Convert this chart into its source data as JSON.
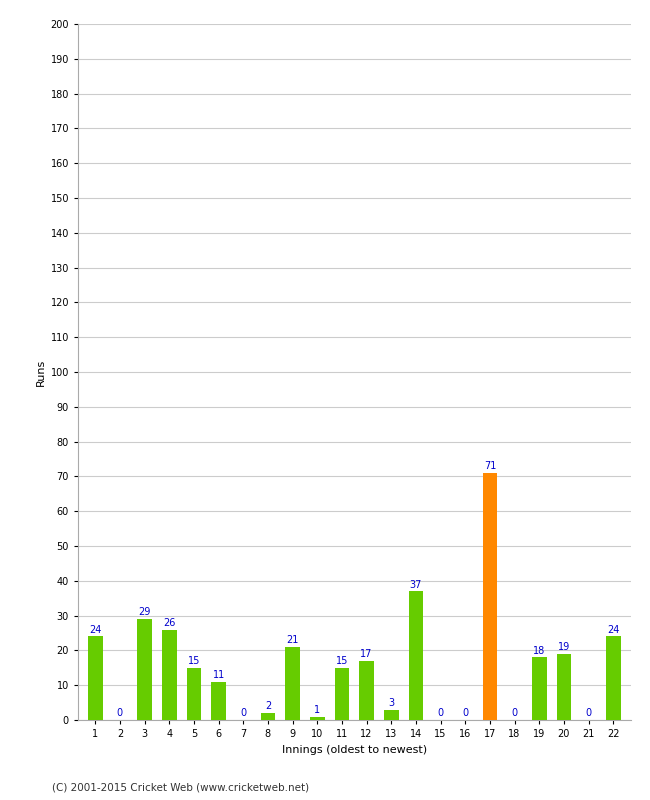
{
  "innings": [
    1,
    2,
    3,
    4,
    5,
    6,
    7,
    8,
    9,
    10,
    11,
    12,
    13,
    14,
    15,
    16,
    17,
    18,
    19,
    20,
    21,
    22
  ],
  "runs": [
    24,
    0,
    29,
    26,
    15,
    11,
    0,
    2,
    21,
    1,
    15,
    17,
    3,
    37,
    0,
    0,
    71,
    0,
    18,
    19,
    0,
    24
  ],
  "bar_colors": [
    "#66cc00",
    "#66cc00",
    "#66cc00",
    "#66cc00",
    "#66cc00",
    "#66cc00",
    "#66cc00",
    "#66cc00",
    "#66cc00",
    "#66cc00",
    "#66cc00",
    "#66cc00",
    "#66cc00",
    "#66cc00",
    "#66cc00",
    "#66cc00",
    "#ff8800",
    "#66cc00",
    "#66cc00",
    "#66cc00",
    "#66cc00",
    "#66cc00"
  ],
  "xlabel": "Innings (oldest to newest)",
  "ylabel": "Runs",
  "ylim": [
    0,
    200
  ],
  "yticks": [
    0,
    10,
    20,
    30,
    40,
    50,
    60,
    70,
    80,
    90,
    100,
    110,
    120,
    130,
    140,
    150,
    160,
    170,
    180,
    190,
    200
  ],
  "label_color": "#0000cc",
  "background_color": "#ffffff",
  "grid_color": "#cccccc",
  "footer": "(C) 2001-2015 Cricket Web (www.cricketweb.net)"
}
